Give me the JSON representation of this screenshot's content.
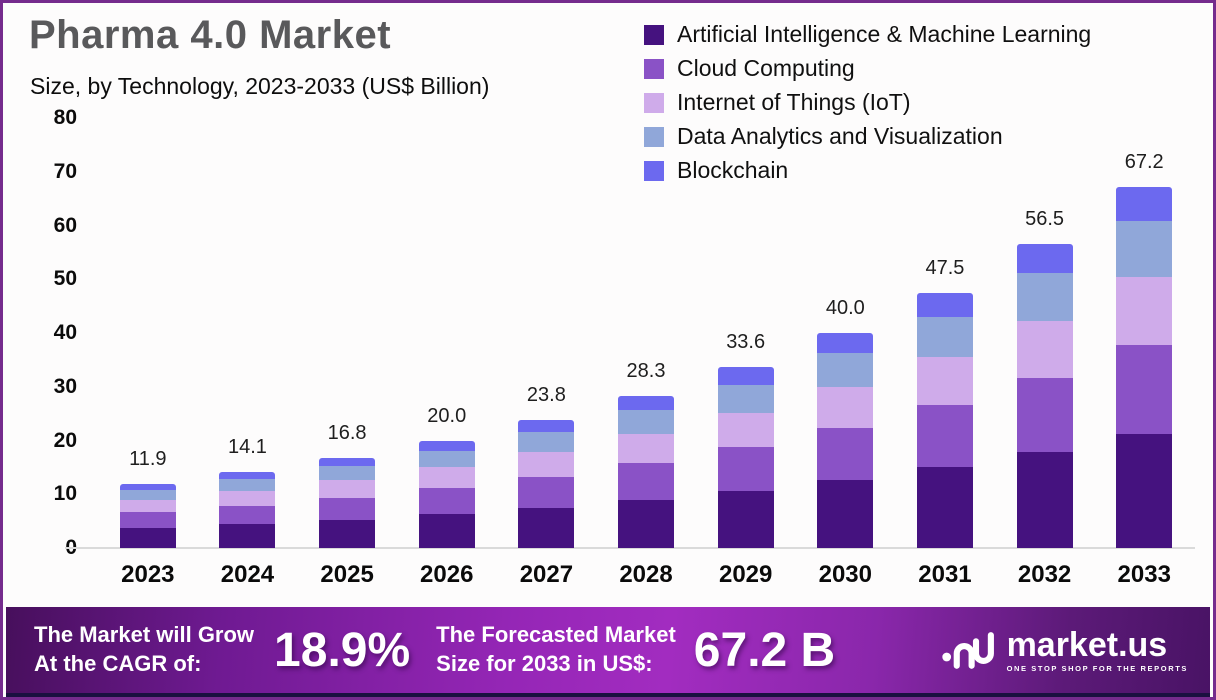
{
  "frame": {
    "border_color": "#752b8d",
    "background": "#fdfcfc"
  },
  "header": {
    "title": "Pharma 4.0 Market",
    "subtitle": "Size, by Technology, 2023-2033 (US$ Billion)"
  },
  "chart_data": {
    "type": "bar",
    "stacked": true,
    "title": "Pharma 4.0 Market Size, by Technology, 2023-2033 (US$ Billion)",
    "categories": [
      "2023",
      "2024",
      "2025",
      "2026",
      "2027",
      "2028",
      "2029",
      "2030",
      "2031",
      "2032",
      "2033"
    ],
    "totals": [
      11.9,
      14.1,
      16.8,
      20.0,
      23.8,
      28.3,
      33.6,
      40.0,
      47.5,
      56.5,
      67.2
    ],
    "total_labels": [
      "11.9",
      "14.1",
      "16.8",
      "20.0",
      "23.8",
      "28.3",
      "33.6",
      "40.0",
      "47.5",
      "56.5",
      "67.2"
    ],
    "series": [
      {
        "name": "Artificial Intelligence & Machine Learning",
        "color": "#45127f",
        "values": [
          3.8,
          4.4,
          5.3,
          6.3,
          7.5,
          8.9,
          10.6,
          12.6,
          15.0,
          17.8,
          21.2
        ]
      },
      {
        "name": "Cloud Computing",
        "color": "#8a52c6",
        "values": [
          2.9,
          3.5,
          4.1,
          4.9,
          5.8,
          6.9,
          8.2,
          9.8,
          11.6,
          13.8,
          16.5
        ]
      },
      {
        "name": "Internet of Things (IoT)",
        "color": "#cfabea",
        "values": [
          2.3,
          2.7,
          3.2,
          3.8,
          4.5,
          5.4,
          6.4,
          7.6,
          9.0,
          10.7,
          12.8
        ]
      },
      {
        "name": "Data Analytics and Visualization",
        "color": "#90a7d9",
        "values": [
          1.8,
          2.2,
          2.6,
          3.1,
          3.7,
          4.4,
          5.2,
          6.2,
          7.4,
          8.8,
          10.4
        ]
      },
      {
        "name": "Blockchain",
        "color": "#6c69ef",
        "values": [
          1.1,
          1.3,
          1.6,
          1.9,
          2.3,
          2.7,
          3.2,
          3.8,
          4.5,
          5.4,
          6.3
        ]
      }
    ],
    "xlabel": "",
    "ylabel": "",
    "ylim": [
      0,
      80
    ],
    "yticks": [
      0,
      10,
      20,
      30,
      40,
      50,
      60,
      70,
      80
    ],
    "grid": false,
    "legend_position": "top-right"
  },
  "banner": {
    "cagr_label_line1": "The Market will Grow",
    "cagr_label_line2": "At the CAGR of:",
    "cagr_value": "18.9%",
    "forecast_label_line1": "The Forecasted Market",
    "forecast_label_line2": "Size for 2033 in US$:",
    "forecast_value": "67.2 B",
    "logo_text": "market.us",
    "logo_tagline": "ONE STOP SHOP FOR THE REPORTS"
  }
}
